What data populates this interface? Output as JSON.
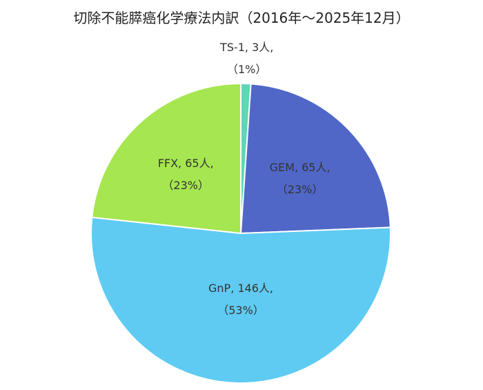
{
  "chart_data": {
    "type": "pie",
    "title": "切除不能膵癌化学療法内訳（2016年～2025年12月）",
    "categories": [
      "TS-1",
      "GEM",
      "GnP",
      "FFX"
    ],
    "values": [
      3,
      65,
      146,
      65
    ],
    "percent_labels": [
      "（1%）",
      "（23%）",
      "（53%）",
      "（23%）"
    ],
    "name_labels": [
      "TS-1, 3人,",
      "GEM, 65人,",
      "GnP, 146人,",
      "FFX, 65人,"
    ],
    "colors": [
      "#5fd6b6",
      "#5067c8",
      "#5fcbf2",
      "#a6e650"
    ],
    "start_angle_deg": 0,
    "direction": "clockwise",
    "legend": "none"
  }
}
